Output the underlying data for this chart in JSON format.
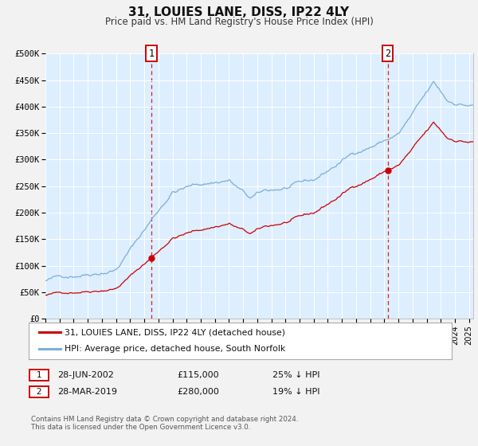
{
  "title": "31, LOUIES LANE, DISS, IP22 4LY",
  "subtitle": "Price paid vs. HM Land Registry's House Price Index (HPI)",
  "ylim": [
    0,
    500000
  ],
  "xlim_start": 1995.0,
  "xlim_end": 2025.3,
  "fig_bg_color": "#f2f2f2",
  "plot_bg_color": "#ddeeff",
  "grid_color": "#ffffff",
  "red_color": "#cc0000",
  "blue_color": "#7aafda",
  "marker1_date": 2002.49,
  "marker1_price": 115000,
  "marker1_hpi": 153000,
  "marker1_label": "28-JUN-2002",
  "marker1_pct": "25%",
  "marker2_date": 2019.24,
  "marker2_price": 280000,
  "marker2_hpi": 345000,
  "marker2_label": "28-MAR-2019",
  "marker2_pct": "19%",
  "legend_line1": "31, LOUIES LANE, DISS, IP22 4LY (detached house)",
  "legend_line2": "HPI: Average price, detached house, South Norfolk",
  "footer1": "Contains HM Land Registry data © Crown copyright and database right 2024.",
  "footer2": "This data is licensed under the Open Government Licence v3.0.",
  "yticks": [
    0,
    50000,
    100000,
    150000,
    200000,
    250000,
    300000,
    350000,
    400000,
    450000,
    500000
  ],
  "ytick_labels": [
    "£0",
    "£50K",
    "£100K",
    "£150K",
    "£200K",
    "£250K",
    "£300K",
    "£350K",
    "£400K",
    "£450K",
    "£500K"
  ]
}
